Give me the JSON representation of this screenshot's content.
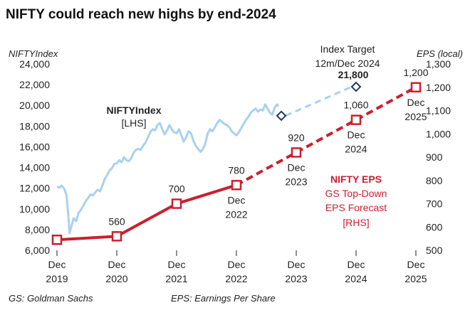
{
  "chart_data": {
    "type": "line",
    "title": "NIFTY could reach new highs by end-2024",
    "left_axis": {
      "title": "NIFTYIndex",
      "ylim": [
        6000,
        24000
      ],
      "ticks": [
        6000,
        8000,
        10000,
        12000,
        14000,
        16000,
        18000,
        20000,
        22000,
        24000
      ],
      "tick_labels": [
        "6,000",
        "8,000",
        "10,000",
        "12,000",
        "14,000",
        "16,000",
        "18,000",
        "20,000",
        "22,000",
        "24,000"
      ]
    },
    "right_axis": {
      "title": "EPS (local)",
      "ylim": [
        500,
        1300
      ],
      "ticks": [
        500,
        600,
        700,
        800,
        900,
        1000,
        1100,
        1200,
        1300
      ],
      "tick_labels": [
        "500",
        "600",
        "700",
        "800",
        "900",
        "1,000",
        "1,100",
        "1,200",
        "1,300"
      ]
    },
    "x_ticks": [
      {
        "line1": "Dec",
        "line2": "2019"
      },
      {
        "line1": "Dec",
        "line2": "2020"
      },
      {
        "line1": "Dec",
        "line2": "2021"
      },
      {
        "line1": "Dec",
        "line2": "2022"
      },
      {
        "line1": "Dec",
        "line2": "2023"
      },
      {
        "line1": "Dec",
        "line2": "2024"
      },
      {
        "line1": "Dec",
        "line2": "2025"
      }
    ],
    "nifty_series": {
      "name_line1": "NIFTYIndex",
      "name_line2": "[LHS]",
      "color": "#a9d1ee",
      "x_unit": "years since Dec 2019",
      "points": [
        [
          0.0,
          12150
        ],
        [
          0.04,
          12050
        ],
        [
          0.08,
          12250
        ],
        [
          0.12,
          11950
        ],
        [
          0.16,
          11300
        ],
        [
          0.19,
          9300
        ],
        [
          0.21,
          7650
        ],
        [
          0.24,
          8300
        ],
        [
          0.28,
          9100
        ],
        [
          0.32,
          8800
        ],
        [
          0.36,
          9600
        ],
        [
          0.4,
          9900
        ],
        [
          0.44,
          10300
        ],
        [
          0.48,
          10750
        ],
        [
          0.52,
          11050
        ],
        [
          0.56,
          11400
        ],
        [
          0.6,
          11300
        ],
        [
          0.64,
          11600
        ],
        [
          0.68,
          11850
        ],
        [
          0.72,
          11700
        ],
        [
          0.76,
          12250
        ],
        [
          0.8,
          12900
        ],
        [
          0.84,
          13300
        ],
        [
          0.88,
          13700
        ],
        [
          0.92,
          13950
        ],
        [
          0.96,
          14350
        ],
        [
          1.0,
          14400
        ],
        [
          1.04,
          14700
        ],
        [
          1.08,
          14500
        ],
        [
          1.12,
          15000
        ],
        [
          1.16,
          14700
        ],
        [
          1.2,
          14600
        ],
        [
          1.24,
          14900
        ],
        [
          1.28,
          15400
        ],
        [
          1.32,
          15700
        ],
        [
          1.36,
          15800
        ],
        [
          1.4,
          15700
        ],
        [
          1.44,
          16100
        ],
        [
          1.48,
          16400
        ],
        [
          1.52,
          16900
        ],
        [
          1.56,
          17400
        ],
        [
          1.6,
          17700
        ],
        [
          1.64,
          17600
        ],
        [
          1.68,
          18100
        ],
        [
          1.72,
          18300
        ],
        [
          1.76,
          17700
        ],
        [
          1.8,
          17200
        ],
        [
          1.84,
          17600
        ],
        [
          1.88,
          18100
        ],
        [
          1.92,
          17700
        ],
        [
          1.96,
          17400
        ],
        [
          2.0,
          17300
        ],
        [
          2.04,
          17700
        ],
        [
          2.08,
          17100
        ],
        [
          2.12,
          16500
        ],
        [
          2.16,
          16900
        ],
        [
          2.2,
          17500
        ],
        [
          2.24,
          17300
        ],
        [
          2.28,
          16600
        ],
        [
          2.32,
          16100
        ],
        [
          2.36,
          15800
        ],
        [
          2.4,
          15500
        ],
        [
          2.44,
          15800
        ],
        [
          2.48,
          16300
        ],
        [
          2.52,
          17300
        ],
        [
          2.56,
          17700
        ],
        [
          2.6,
          17500
        ],
        [
          2.64,
          17900
        ],
        [
          2.68,
          18300
        ],
        [
          2.72,
          18600
        ],
        [
          2.76,
          18400
        ],
        [
          2.8,
          18200
        ],
        [
          2.84,
          18100
        ],
        [
          2.88,
          17900
        ],
        [
          2.92,
          17500
        ],
        [
          2.96,
          17300
        ],
        [
          3.0,
          17100
        ],
        [
          3.04,
          17400
        ],
        [
          3.08,
          17800
        ],
        [
          3.12,
          18200
        ],
        [
          3.16,
          18600
        ],
        [
          3.2,
          18900
        ],
        [
          3.24,
          19300
        ],
        [
          3.28,
          19500
        ],
        [
          3.32,
          19700
        ],
        [
          3.36,
          19400
        ],
        [
          3.4,
          19600
        ],
        [
          3.44,
          19500
        ],
        [
          3.48,
          20100
        ],
        [
          3.52,
          19700
        ],
        [
          3.56,
          19300
        ],
        [
          3.6,
          19100
        ],
        [
          3.64,
          19800
        ],
        [
          3.68,
          20100
        ],
        [
          3.7,
          19900
        ]
      ]
    },
    "index_target": {
      "label_line1": "Index Target",
      "label_line2": "12m/Dec 2024",
      "points": [
        [
          3.75,
          19000
        ],
        [
          5.0,
          21800
        ]
      ],
      "labels": [
        "",
        "21,800"
      ],
      "marker_color": "#1f3a5f",
      "dash_color": "#a9d1ee"
    },
    "eps_series": {
      "name": "NIFTY EPS",
      "forecast_label_line1": "GS Top-Down",
      "forecast_label_line2": "EPS Forecast",
      "forecast_label_line3": "[RHS]",
      "color": "#cc1f2e",
      "x": [
        0,
        1,
        2,
        3,
        4,
        5,
        6
      ],
      "values": [
        545,
        560,
        700,
        780,
        920,
        1060,
        1200
      ],
      "actual_count": 4,
      "point_labels": [
        {
          "value": "",
          "date1": "",
          "date2": ""
        },
        {
          "value": "560",
          "date1": "",
          "date2": ""
        },
        {
          "value": "700",
          "date1": "",
          "date2": ""
        },
        {
          "value": "780",
          "date1": "Dec",
          "date2": "2022"
        },
        {
          "value": "920",
          "date1": "Dec",
          "date2": "2023"
        },
        {
          "value": "1,060",
          "date1": "Dec",
          "date2": "2024"
        },
        {
          "value": "1,200",
          "date1": "Dec",
          "date2": "2025"
        }
      ]
    },
    "footnotes": {
      "left": "GS: Goldman Sachs",
      "right": "EPS: Earnings Per Share"
    }
  }
}
